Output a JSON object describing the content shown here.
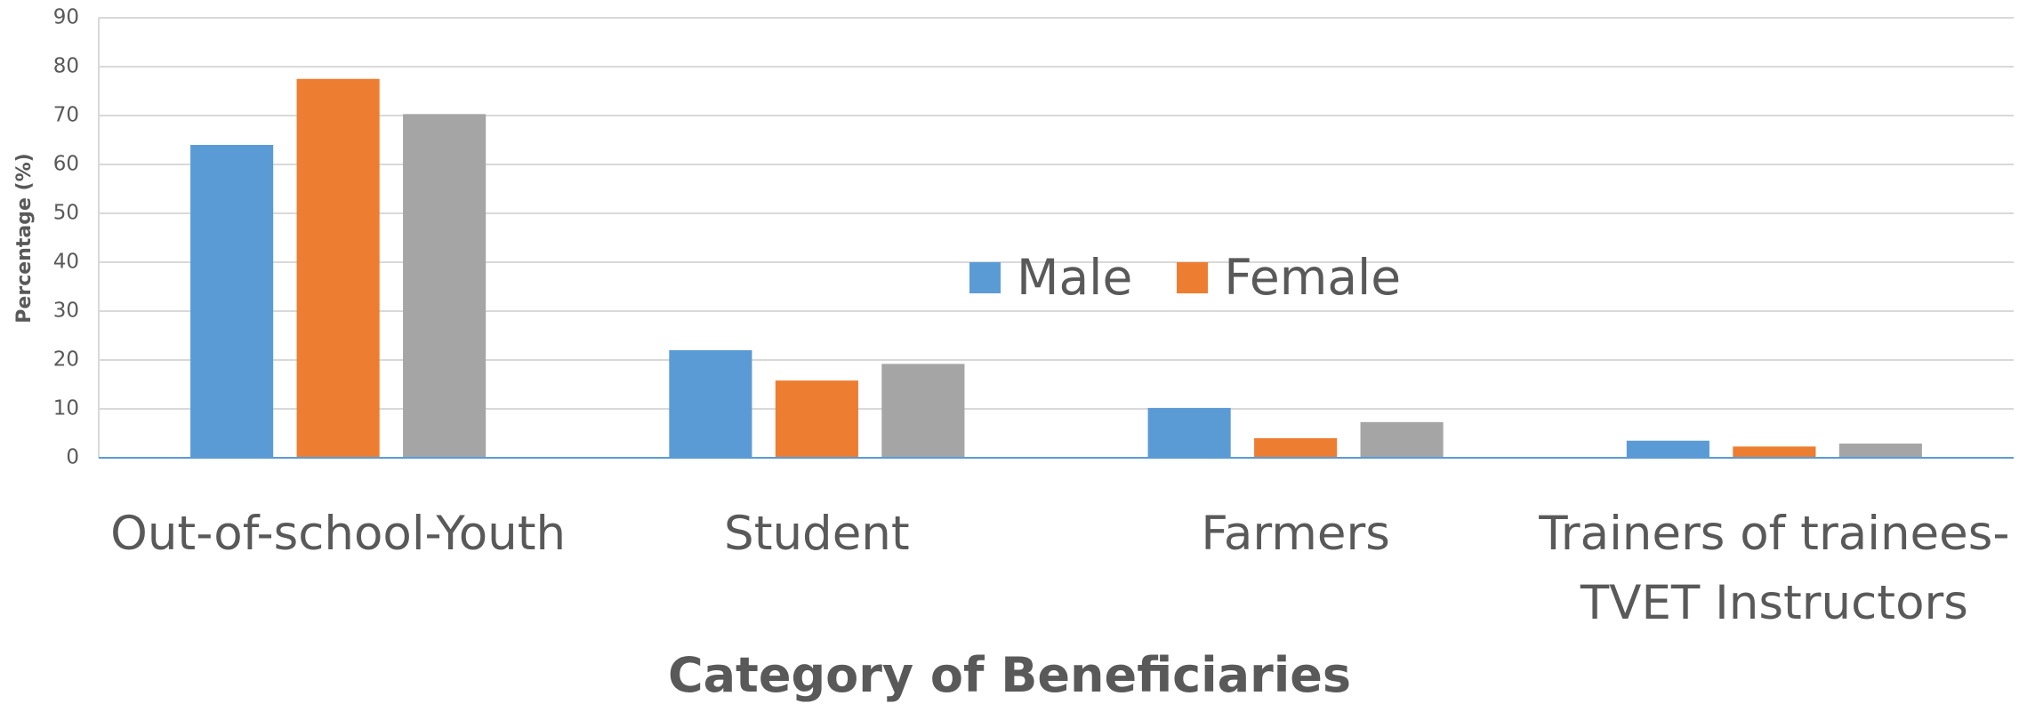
{
  "chart_data": {
    "type": "bar",
    "x_label": "Category of Beneficiaries",
    "y_label": "Percentage (%)",
    "categories": [
      "Out-of-school-Youth",
      "Student",
      "Farmers",
      "Trainers of trainees-TVET Instructors"
    ],
    "series": [
      {
        "name": "Male",
        "color": "#5b9bd5",
        "values": [
          64,
          22,
          10.2,
          3.5
        ]
      },
      {
        "name": "Female",
        "color": "#ed7d31",
        "values": [
          77.5,
          15.8,
          4,
          2.3
        ]
      },
      {
        "name": null,
        "color": "#a5a5a5",
        "values": [
          70.3,
          19.2,
          7.3,
          2.9
        ]
      }
    ],
    "ylim": [
      0,
      90
    ],
    "yticks": [
      0,
      10,
      20,
      30,
      40,
      50,
      60,
      70,
      80,
      90
    ],
    "grid": true,
    "legend": "center"
  }
}
